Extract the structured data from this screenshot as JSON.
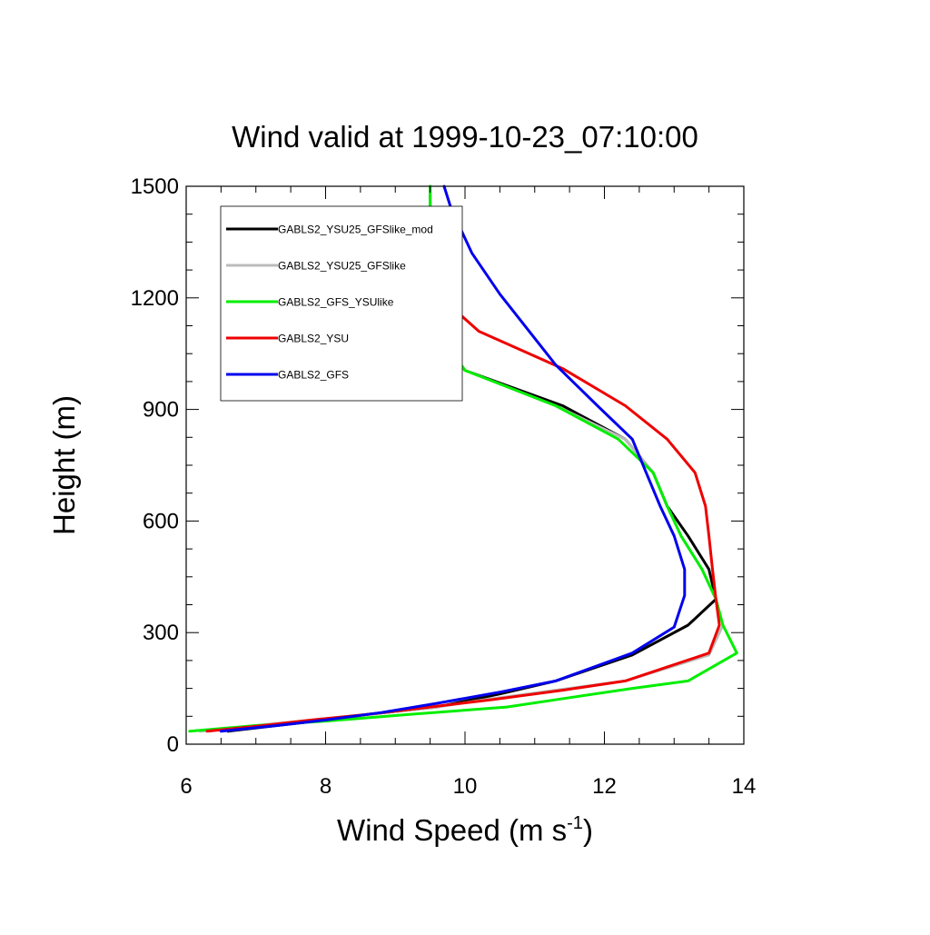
{
  "chart_data": {
    "type": "line",
    "title": "Wind valid at 1999-10-23_07:10:00",
    "xlabel": "Wind Speed (m s",
    "xlabel_sup": "-1",
    "xlabel_close": ")",
    "ylabel": "Height (m)",
    "xlim": [
      6,
      14
    ],
    "ylim": [
      0,
      1500
    ],
    "x_ticks": [
      6,
      8,
      10,
      12,
      14
    ],
    "y_ticks": [
      0,
      300,
      600,
      900,
      1200,
      1500
    ],
    "grid": false,
    "legend_position": "top-left",
    "series": [
      {
        "name": "GABLS2_YSU25_GFSlike_mod",
        "color": "#000000",
        "points": [
          [
            6.6,
            35
          ],
          [
            7.3,
            50
          ],
          [
            8.0,
            65
          ],
          [
            8.6,
            80
          ],
          [
            9.6,
            100
          ],
          [
            10.5,
            135
          ],
          [
            11.3,
            170
          ],
          [
            12.4,
            240
          ],
          [
            13.2,
            320
          ],
          [
            13.6,
            390
          ],
          [
            13.5,
            470
          ],
          [
            13.2,
            560
          ],
          [
            12.9,
            640
          ],
          [
            12.7,
            730
          ],
          [
            12.3,
            820
          ],
          [
            11.4,
            910
          ],
          [
            10.0,
            1005
          ],
          [
            9.6,
            1110
          ],
          [
            9.55,
            1210
          ],
          [
            9.5,
            1300
          ],
          [
            9.5,
            1400
          ],
          [
            9.5,
            1500
          ]
        ]
      },
      {
        "name": "GABLS2_YSU25_GFSlike",
        "color": "#bbbbbb",
        "points": [
          [
            6.2,
            35
          ],
          [
            7.0,
            50
          ],
          [
            7.8,
            65
          ],
          [
            8.6,
            80
          ],
          [
            9.6,
            100
          ],
          [
            10.3,
            120
          ],
          [
            11.3,
            145
          ],
          [
            12.3,
            170
          ],
          [
            13.5,
            240
          ],
          [
            13.7,
            320
          ],
          [
            13.6,
            390
          ],
          [
            13.4,
            470
          ],
          [
            13.1,
            560
          ],
          [
            12.9,
            640
          ],
          [
            12.7,
            730
          ],
          [
            12.3,
            820
          ],
          [
            11.3,
            910
          ],
          [
            10.0,
            1005
          ],
          [
            9.6,
            1110
          ],
          [
            9.5,
            1210
          ],
          [
            9.5,
            1300
          ],
          [
            9.5,
            1400
          ],
          [
            9.5,
            1500
          ]
        ]
      },
      {
        "name": "GABLS2_GFS_YSUlike",
        "color": "#00ee00",
        "points": [
          [
            6.05,
            35
          ],
          [
            7.0,
            50
          ],
          [
            8.0,
            62
          ],
          [
            9.2,
            80
          ],
          [
            10.6,
            100
          ],
          [
            11.5,
            125
          ],
          [
            12.4,
            150
          ],
          [
            13.2,
            170
          ],
          [
            13.9,
            245
          ],
          [
            13.7,
            320
          ],
          [
            13.6,
            390
          ],
          [
            13.4,
            470
          ],
          [
            13.1,
            560
          ],
          [
            12.9,
            640
          ],
          [
            12.7,
            730
          ],
          [
            12.2,
            820
          ],
          [
            11.3,
            910
          ],
          [
            10.0,
            1005
          ],
          [
            9.6,
            1110
          ],
          [
            9.5,
            1210
          ],
          [
            9.5,
            1300
          ],
          [
            9.5,
            1400
          ],
          [
            9.5,
            1500
          ]
        ]
      },
      {
        "name": "GABLS2_YSU",
        "color": "#ee0000",
        "points": [
          [
            6.3,
            35
          ],
          [
            7.1,
            50
          ],
          [
            7.8,
            65
          ],
          [
            8.6,
            80
          ],
          [
            9.5,
            100
          ],
          [
            10.4,
            120
          ],
          [
            11.4,
            145
          ],
          [
            12.3,
            170
          ],
          [
            13.5,
            245
          ],
          [
            13.65,
            320
          ],
          [
            13.6,
            390
          ],
          [
            13.55,
            470
          ],
          [
            13.5,
            560
          ],
          [
            13.45,
            640
          ],
          [
            13.3,
            730
          ],
          [
            12.9,
            820
          ],
          [
            12.3,
            910
          ],
          [
            11.4,
            1010
          ],
          [
            10.2,
            1110
          ],
          [
            9.6,
            1210
          ],
          [
            9.5,
            1300
          ]
        ]
      },
      {
        "name": "GABLS2_GFS",
        "color": "#0000ee",
        "points": [
          [
            6.5,
            35
          ],
          [
            7.3,
            50
          ],
          [
            8.0,
            65
          ],
          [
            8.8,
            85
          ],
          [
            9.6,
            110
          ],
          [
            10.5,
            140
          ],
          [
            11.3,
            170
          ],
          [
            12.4,
            245
          ],
          [
            13.0,
            315
          ],
          [
            13.15,
            400
          ],
          [
            13.15,
            470
          ],
          [
            13.0,
            560
          ],
          [
            12.8,
            640
          ],
          [
            12.6,
            730
          ],
          [
            12.4,
            820
          ],
          [
            11.9,
            910
          ],
          [
            11.3,
            1020
          ],
          [
            10.5,
            1210
          ],
          [
            10.1,
            1320
          ],
          [
            9.8,
            1440
          ],
          [
            9.7,
            1500
          ]
        ]
      }
    ]
  }
}
